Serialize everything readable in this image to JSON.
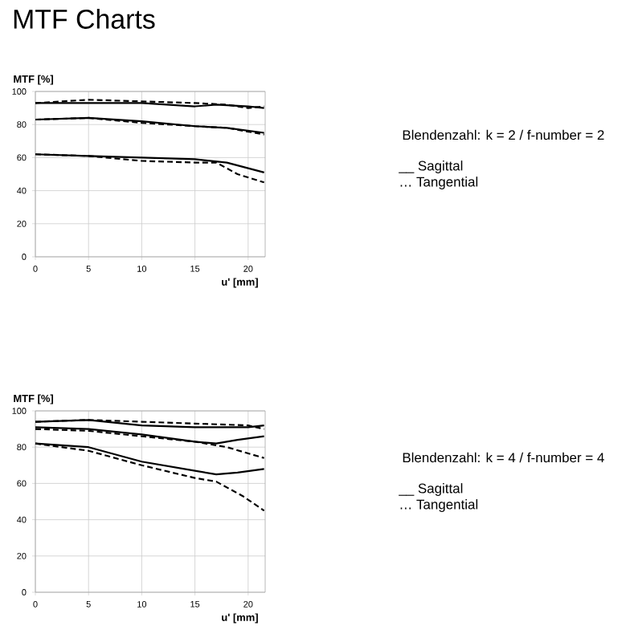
{
  "chart_data": [
    {
      "type": "line",
      "title": "MTF Charts",
      "xlabel": "u' [mm]",
      "ylabel": "MTF [%]",
      "xlim": [
        0,
        21.6
      ],
      "ylim": [
        0,
        100
      ],
      "xticks": [
        0,
        5,
        10,
        15,
        20
      ],
      "yticks": [
        0,
        20,
        40,
        60,
        80,
        100
      ],
      "grid": true,
      "annotations": [
        "Blendenzahl: k = 2 / f-number = 2",
        "__ Sagittal",
        "… Tangential"
      ],
      "series": [
        {
          "color": "#000000",
          "line_style": "solid",
          "x": [
            0,
            5,
            10,
            15,
            17,
            20,
            21.5
          ],
          "values": [
            93,
            93,
            93,
            91,
            92,
            91,
            90
          ]
        },
        {
          "color": "#000000",
          "line_style": "dashed",
          "x": [
            0,
            5,
            10,
            15,
            18,
            20,
            21.5
          ],
          "values": [
            93,
            95,
            94,
            93,
            92,
            90,
            91
          ]
        },
        {
          "color": "#000000",
          "line_style": "solid",
          "x": [
            0,
            5,
            10,
            15,
            18,
            21.5
          ],
          "values": [
            83,
            84,
            82,
            79,
            78,
            75
          ]
        },
        {
          "color": "#000000",
          "line_style": "dashed",
          "x": [
            0,
            5,
            10,
            15,
            18,
            21.5
          ],
          "values": [
            83,
            84,
            81,
            79,
            78,
            74
          ]
        },
        {
          "color": "#000000",
          "line_style": "solid",
          "x": [
            0,
            5,
            10,
            15,
            18,
            21.5
          ],
          "values": [
            62,
            61,
            60,
            59,
            57,
            51
          ]
        },
        {
          "color": "#000000",
          "line_style": "dashed",
          "x": [
            0,
            5,
            10,
            15,
            17,
            19,
            21.5
          ],
          "values": [
            62,
            61,
            58,
            57,
            57,
            50,
            45
          ]
        }
      ]
    },
    {
      "type": "line",
      "xlabel": "u' [mm]",
      "ylabel": "MTF [%]",
      "xlim": [
        0,
        21.6
      ],
      "ylim": [
        0,
        100
      ],
      "xticks": [
        0,
        5,
        10,
        15,
        20
      ],
      "yticks": [
        0,
        20,
        40,
        60,
        80,
        100
      ],
      "grid": true,
      "annotations": [
        "Blendenzahl: k = 4 / f-number = 4",
        "__ Sagittal",
        "… Tangential"
      ],
      "series": [
        {
          "color": "#000000",
          "line_style": "solid",
          "x": [
            0,
            5,
            10,
            15,
            20,
            21.5
          ],
          "values": [
            94,
            95,
            92,
            91,
            91,
            92
          ]
        },
        {
          "color": "#000000",
          "line_style": "dashed",
          "x": [
            0,
            5,
            10,
            15,
            20,
            21.5
          ],
          "values": [
            94,
            95,
            94,
            93,
            92,
            90
          ]
        },
        {
          "color": "#000000",
          "line_style": "solid",
          "x": [
            0,
            5,
            10,
            15,
            17,
            19,
            21.5
          ],
          "values": [
            91,
            90,
            87,
            83,
            82,
            84,
            86
          ]
        },
        {
          "color": "#000000",
          "line_style": "dashed",
          "x": [
            0,
            5,
            10,
            15,
            18,
            21.5
          ],
          "values": [
            90,
            89,
            86,
            83,
            80,
            74
          ]
        },
        {
          "color": "#000000",
          "line_style": "solid",
          "x": [
            0,
            5,
            10,
            15,
            17,
            19,
            21.5
          ],
          "values": [
            82,
            80,
            72,
            67,
            65,
            66,
            68
          ]
        },
        {
          "color": "#000000",
          "line_style": "dashed",
          "x": [
            0,
            5,
            10,
            15,
            17,
            19.5,
            21.5
          ],
          "values": [
            82,
            78,
            70,
            63,
            61,
            53,
            45
          ]
        }
      ]
    }
  ]
}
